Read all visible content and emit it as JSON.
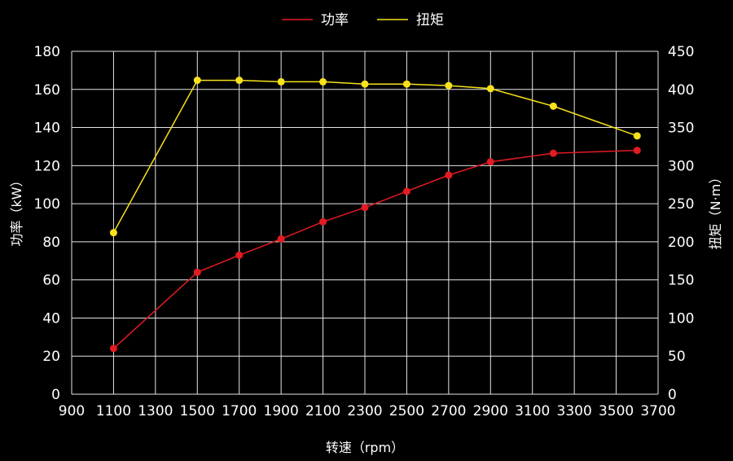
{
  "chart_data": {
    "type": "line",
    "title": "",
    "xlabel": "转速（rpm）",
    "ylabel_left": "功率（kW）",
    "ylabel_right": "扭矩（N·m）",
    "x_ticks": [
      "900",
      "1100",
      "1300",
      "1500",
      "1700",
      "1900",
      "2100",
      "2300",
      "2500",
      "2700",
      "2900",
      "3100",
      "3300",
      "3500",
      "3700"
    ],
    "y_left_ticks": [
      "0",
      "20",
      "40",
      "60",
      "80",
      "100",
      "120",
      "140",
      "160",
      "180"
    ],
    "y_right_ticks": [
      "0",
      "50",
      "100",
      "150",
      "200",
      "250",
      "300",
      "350",
      "400",
      "450"
    ],
    "xlim": [
      900,
      3700
    ],
    "ylim_left": [
      0,
      180
    ],
    "ylim_right": [
      0,
      450
    ],
    "grid": true,
    "legend_position": "top-center",
    "series": [
      {
        "name": "功率",
        "axis": "left",
        "color": "#e31b23",
        "x": [
          1100,
          1500,
          1700,
          1900,
          2100,
          2300,
          2500,
          2700,
          2900,
          3200,
          3600
        ],
        "y": [
          24,
          64,
          73,
          81.5,
          90.5,
          98,
          106.5,
          115,
          122,
          126.5,
          128
        ]
      },
      {
        "name": "扭矩",
        "axis": "right",
        "color": "#f7e21b",
        "x": [
          1100,
          1500,
          1700,
          1900,
          2100,
          2300,
          2500,
          2700,
          2900,
          3200,
          3600
        ],
        "y": [
          212,
          412,
          412,
          410,
          410,
          407,
          407,
          405,
          401,
          378,
          339
        ]
      }
    ]
  }
}
